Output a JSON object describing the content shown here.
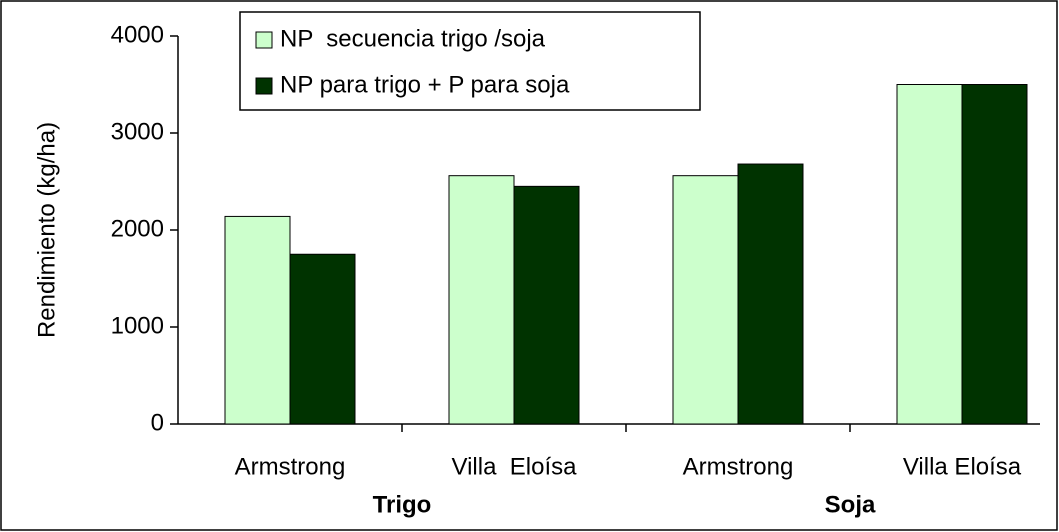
{
  "chart_data": {
    "type": "bar",
    "y_label": "Rendimiento (kg/ha)",
    "categories": [
      "Armstrong",
      "Villa  Eloísa",
      "Armstrong",
      "Villa Eloísa"
    ],
    "group_labels": [
      "Trigo",
      "Soja"
    ],
    "series": [
      {
        "name": "NP  secuencia trigo /soja",
        "color": "#ccffcc",
        "values": [
          2140,
          2560,
          2560,
          3500
        ]
      },
      {
        "name": "NP para trigo + P para soja",
        "color": "#003300",
        "values": [
          1750,
          2450,
          2680,
          3500
        ]
      }
    ],
    "ylim": [
      0,
      4000
    ],
    "yticks": [
      0,
      1000,
      2000,
      3000,
      4000
    ],
    "legend": "top"
  }
}
